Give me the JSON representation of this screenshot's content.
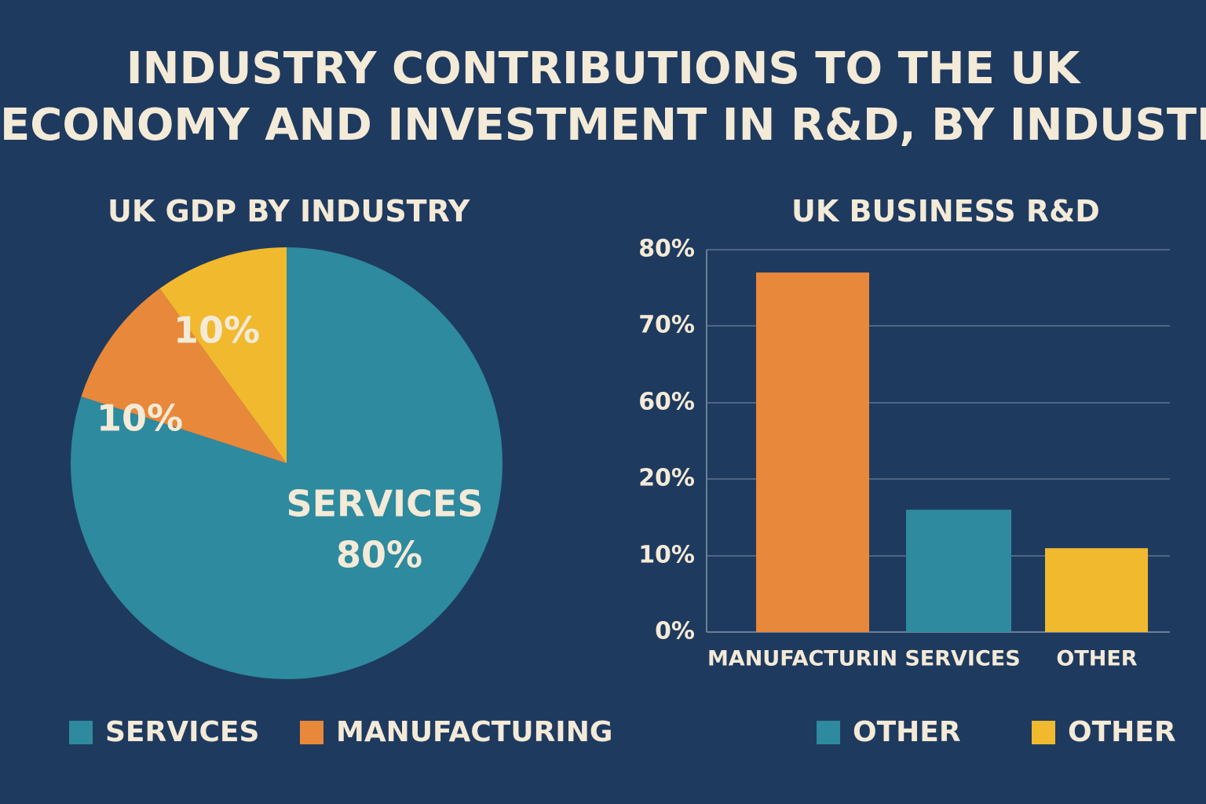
{
  "title_line1": "INDUSTRY CONTRIBUTIONS TO THE UK",
  "title_line2": "ECONOMY AND INVESTMENT IN R&D, BY INDUSTRY",
  "colors": {
    "background": "#1f3a5f",
    "services": "#2e8a9e",
    "manufacturing": "#e8883a",
    "other": "#f0b92e",
    "text": "#f3ead7"
  },
  "chart_data": [
    {
      "type": "pie",
      "title": "UK GDP BY INDUSTRY",
      "slices": [
        {
          "label": "SERVICES",
          "value": 80,
          "display": "80%",
          "color": "#2e8a9e"
        },
        {
          "label": "",
          "value": 10,
          "display": "10%",
          "color": "#e8883a"
        },
        {
          "label": "",
          "value": 10,
          "display": "10%",
          "color": "#f0b92e"
        }
      ],
      "legend": [
        {
          "label": "SERVICES",
          "color": "#2e8a9e"
        },
        {
          "label": "MANUFACTURING",
          "color": "#e8883a"
        }
      ]
    },
    {
      "type": "bar",
      "title": "UK BUSINESS R&D",
      "categories": [
        "MANUFACTURIN",
        "SERVICES",
        "OTHER"
      ],
      "values": [
        77,
        16,
        11
      ],
      "colors": [
        "#e8883a",
        "#2e8a9e",
        "#f0b92e"
      ],
      "yticks": [
        "0%",
        "10%",
        "20%",
        "60%",
        "70%",
        "80%"
      ],
      "legend": [
        {
          "label": "OTHER",
          "color": "#2e8a9e"
        },
        {
          "label": "OTHER",
          "color": "#f0b92e"
        }
      ]
    }
  ]
}
